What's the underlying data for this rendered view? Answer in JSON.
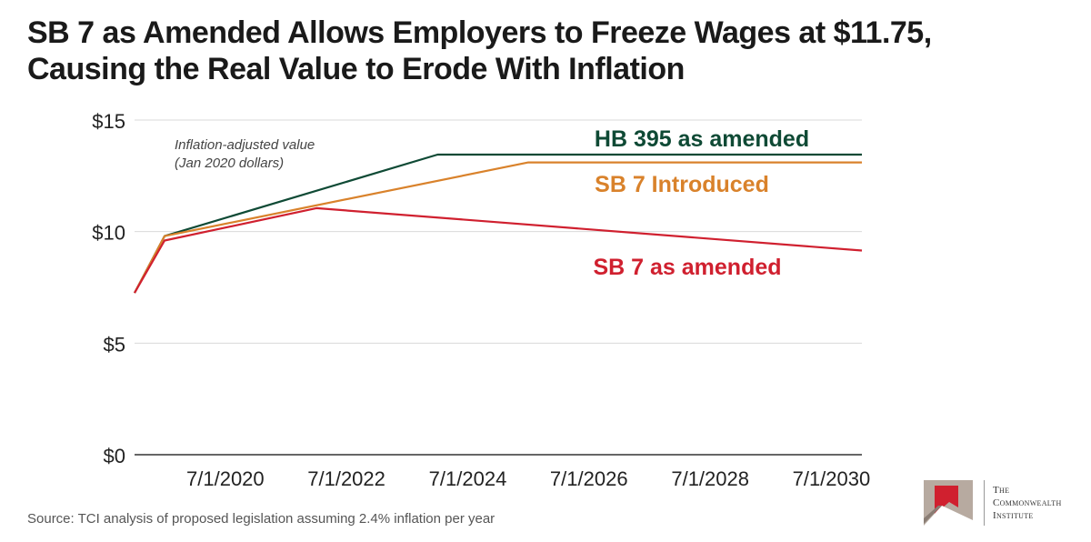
{
  "title_lines": [
    "SB 7 as Amended Allows Employers to Freeze Wages at $11.75,",
    "Causing the Real Value to Erode With Inflation"
  ],
  "source": "Source: TCI analysis of proposed legislation assuming 2.4% inflation per year",
  "logo": {
    "line1": "The",
    "line2": "Commonwealth",
    "line3": "Institute"
  },
  "colors": {
    "hb395": "#0f4a35",
    "sb7_introduced": "#d9822b",
    "sb7_amended": "#d0202f",
    "grid": "#d9d9d9",
    "axis": "#333333"
  },
  "chart_data": {
    "type": "line",
    "annotation": [
      "Inflation-adjusted value",
      "(Jan 2020 dollars)"
    ],
    "ylim": [
      0,
      15
    ],
    "y_ticks": [
      0,
      5,
      10,
      15
    ],
    "y_tick_labels": [
      "$0",
      "$5",
      "$10",
      "$15"
    ],
    "x_range": [
      "2019-01-01",
      "2031-01-01"
    ],
    "x_ticks": [
      "2020-07-01",
      "2022-07-01",
      "2024-07-01",
      "2026-07-01",
      "2028-07-01",
      "2030-07-01"
    ],
    "x_tick_labels": [
      "7/1/2020",
      "7/1/2022",
      "7/1/2024",
      "7/1/2026",
      "7/1/2028",
      "7/1/2030"
    ],
    "grid": "horizontal",
    "series": [
      {
        "name": "HB 395 as amended",
        "color_key": "hb395",
        "points": [
          [
            "2019-01-01",
            7.25
          ],
          [
            "2019-07-01",
            9.8
          ],
          [
            "2024-01-01",
            13.45
          ],
          [
            "2031-01-01",
            13.45
          ]
        ]
      },
      {
        "name": "SB 7 Introduced",
        "color_key": "sb7_introduced",
        "points": [
          [
            "2019-01-01",
            7.25
          ],
          [
            "2019-07-01",
            9.8
          ],
          [
            "2025-07-01",
            13.1
          ],
          [
            "2031-01-01",
            13.1
          ]
        ]
      },
      {
        "name": "SB 7 as amended",
        "color_key": "sb7_amended",
        "points": [
          [
            "2019-01-01",
            7.25
          ],
          [
            "2019-07-01",
            9.6
          ],
          [
            "2022-01-01",
            11.05
          ],
          [
            "2031-01-01",
            9.15
          ]
        ]
      }
    ]
  }
}
